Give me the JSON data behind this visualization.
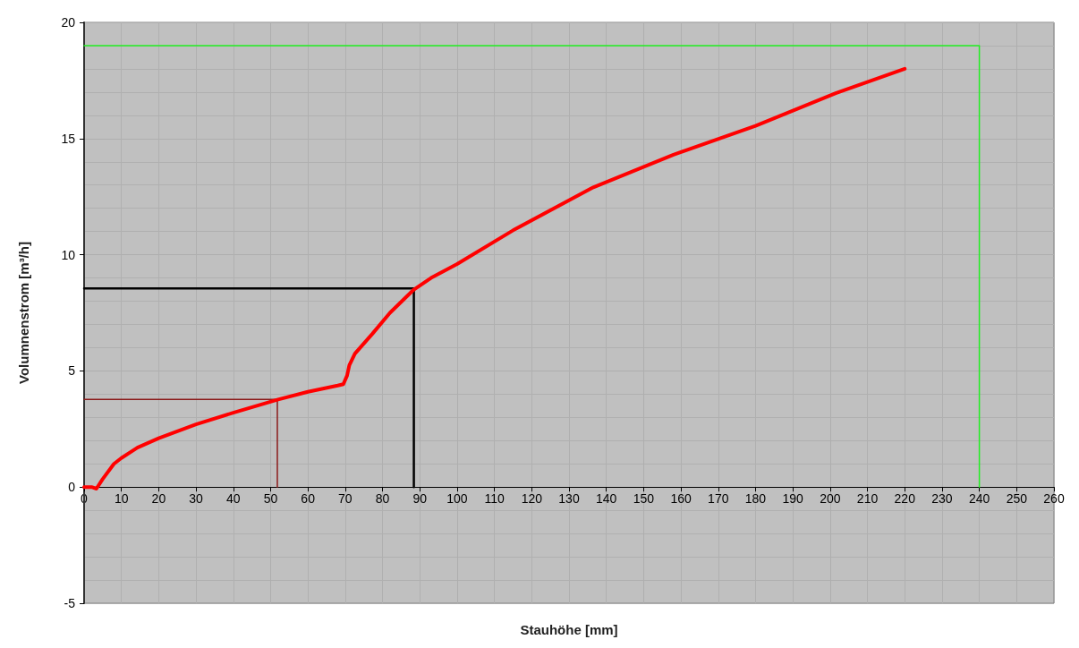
{
  "chart_data": {
    "type": "line",
    "xlabel": "Stauhöhe [mm]",
    "ylabel": "Volumnenstrom [m³/h]",
    "xlim": [
      0,
      260
    ],
    "xticks": [
      0,
      10,
      20,
      30,
      40,
      50,
      60,
      70,
      80,
      90,
      100,
      110,
      120,
      130,
      140,
      150,
      160,
      170,
      180,
      190,
      200,
      210,
      220,
      230,
      240,
      250,
      260
    ],
    "ylim": [
      -5,
      20
    ],
    "yticks": [
      -5,
      0,
      5,
      10,
      15,
      20
    ],
    "grid": true,
    "line_style": "solid",
    "marker": "none",
    "series": [
      {
        "color": "#ff0000",
        "x": [
          0,
          2,
          3.3,
          5,
          8,
          10,
          14.3,
          20,
          30,
          40,
          52,
          60,
          68,
          69.5,
          70.5,
          71.1,
          72.6,
          77.3,
          82,
          88.4,
          93,
          100,
          115,
          136.5,
          158,
          180,
          201.5,
          220
        ],
        "values": [
          0,
          0,
          -0.07,
          0.35,
          1.0,
          1.25,
          1.7,
          2.1,
          2.7,
          3.2,
          3.77,
          4.1,
          4.37,
          4.43,
          4.8,
          5.24,
          5.74,
          6.6,
          7.5,
          8.5,
          9.0,
          9.6,
          11.05,
          12.9,
          14.3,
          15.55,
          16.95,
          18.0
        ]
      },
      {
        "color": "#000000",
        "x": [
          0,
          88.4,
          88.4
        ],
        "values": [
          8.55,
          8.55,
          0
        ]
      },
      {
        "color": "#8b1a1a",
        "x": [
          0,
          51.8,
          51.8
        ],
        "values": [
          3.77,
          3.77,
          0
        ]
      },
      {
        "color": "#22ee22",
        "x": [
          0,
          240,
          240
        ],
        "values": [
          19,
          19,
          0
        ]
      }
    ]
  }
}
